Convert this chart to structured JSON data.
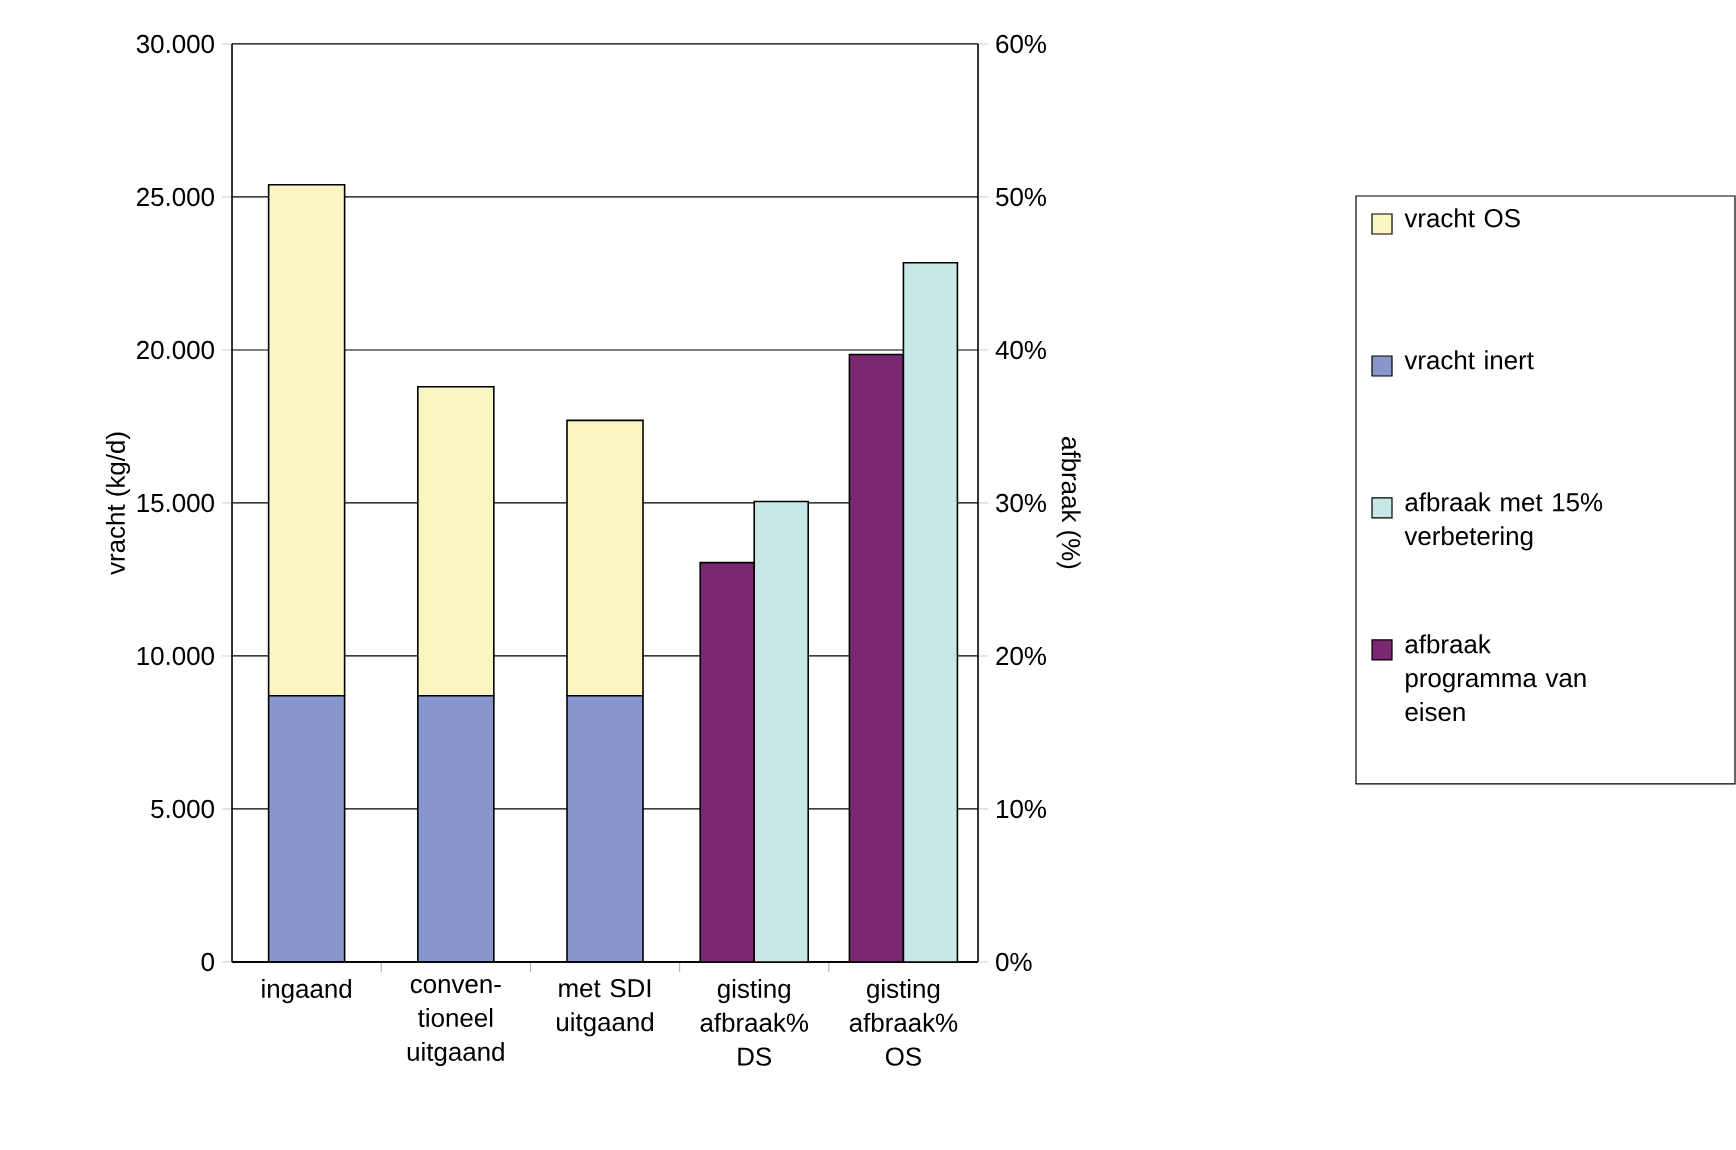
{
  "chart_data": [
    {
      "type": "bar",
      "stacked": true,
      "ylabel": "vracht (kg/d)",
      "categories": [
        "ingaand",
        "conven-tioneel uitgaand",
        "met SDI uitgaand",
        "gisting afbraak% DS",
        "gisting afbraak% OS"
      ],
      "series": [
        {
          "name": "vracht inert",
          "color": "#8796cc",
          "values": [
            8700,
            8700,
            8700,
            null,
            null
          ]
        },
        {
          "name": "vracht OS",
          "color": "#fbf5c3",
          "values": [
            16700,
            10100,
            9000,
            null,
            null
          ]
        }
      ],
      "ylim": [
        0,
        30000
      ],
      "yticks": [
        {
          "value": 0,
          "label": "0"
        },
        {
          "value": 5000,
          "label": "5.000"
        },
        {
          "value": 10000,
          "label": "10.000"
        },
        {
          "value": 15000,
          "label": "15.000"
        },
        {
          "value": 20000,
          "label": "20.000"
        },
        {
          "value": 25000,
          "label": "25.000"
        },
        {
          "value": 30000,
          "label": "30.000"
        }
      ],
      "grid": "y",
      "legend": "right"
    },
    {
      "type": "bar",
      "y2label": "afbraak (%)",
      "categories": [
        null,
        null,
        null,
        null,
        null
      ],
      "series": [
        {
          "name": "afbraak programma van eisen",
          "color": "#7a2872",
          "axis": "y2",
          "values": [
            null,
            null,
            null,
            26.1,
            39.7
          ]
        },
        {
          "name": "afbraak met 15% verbetering",
          "color": "#c8e8e8",
          "axis": "y2",
          "values": [
            null,
            null,
            null,
            30.1,
            45.7
          ]
        }
      ],
      "y2lim": [
        0,
        60
      ],
      "y2ticks": [
        {
          "value": 0,
          "label": "0%"
        },
        {
          "value": 10,
          "label": "10%"
        },
        {
          "value": 20,
          "label": "20%"
        },
        {
          "value": 30,
          "label": "30%"
        },
        {
          "value": 40,
          "label": "40%"
        },
        {
          "value": 50,
          "label": "50%"
        },
        {
          "value": 60,
          "label": "60%"
        }
      ],
      "legend": "right"
    }
  ]
}
